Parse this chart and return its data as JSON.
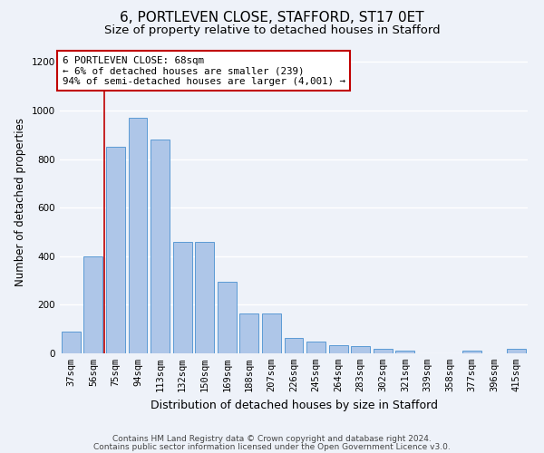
{
  "title1": "6, PORTLEVEN CLOSE, STAFFORD, ST17 0ET",
  "title2": "Size of property relative to detached houses in Stafford",
  "xlabel": "Distribution of detached houses by size in Stafford",
  "ylabel": "Number of detached properties",
  "categories": [
    "37sqm",
    "56sqm",
    "75sqm",
    "94sqm",
    "113sqm",
    "132sqm",
    "150sqm",
    "169sqm",
    "188sqm",
    "207sqm",
    "226sqm",
    "245sqm",
    "264sqm",
    "283sqm",
    "302sqm",
    "321sqm",
    "339sqm",
    "358sqm",
    "377sqm",
    "396sqm",
    "415sqm"
  ],
  "values": [
    90,
    400,
    850,
    970,
    880,
    460,
    460,
    295,
    163,
    163,
    65,
    50,
    32,
    28,
    18,
    10,
    0,
    0,
    10,
    0,
    18
  ],
  "bar_color": "#aec6e8",
  "bar_edge_color": "#5b9bd5",
  "vline_x": 1.5,
  "vline_color": "#c00000",
  "annotation_text": "6 PORTLEVEN CLOSE: 68sqm\n← 6% of detached houses are smaller (239)\n94% of semi-detached houses are larger (4,001) →",
  "annotation_box_color": "#ffffff",
  "annotation_border_color": "#c00000",
  "ylim": [
    0,
    1250
  ],
  "yticks": [
    0,
    200,
    400,
    600,
    800,
    1000,
    1200
  ],
  "footer1": "Contains HM Land Registry data © Crown copyright and database right 2024.",
  "footer2": "Contains public sector information licensed under the Open Government Licence v3.0.",
  "background_color": "#eef2f9",
  "grid_color": "#ffffff",
  "title1_fontsize": 11,
  "title2_fontsize": 9.5,
  "xlabel_fontsize": 9,
  "ylabel_fontsize": 8.5,
  "tick_fontsize": 7.5,
  "footer_fontsize": 6.5
}
